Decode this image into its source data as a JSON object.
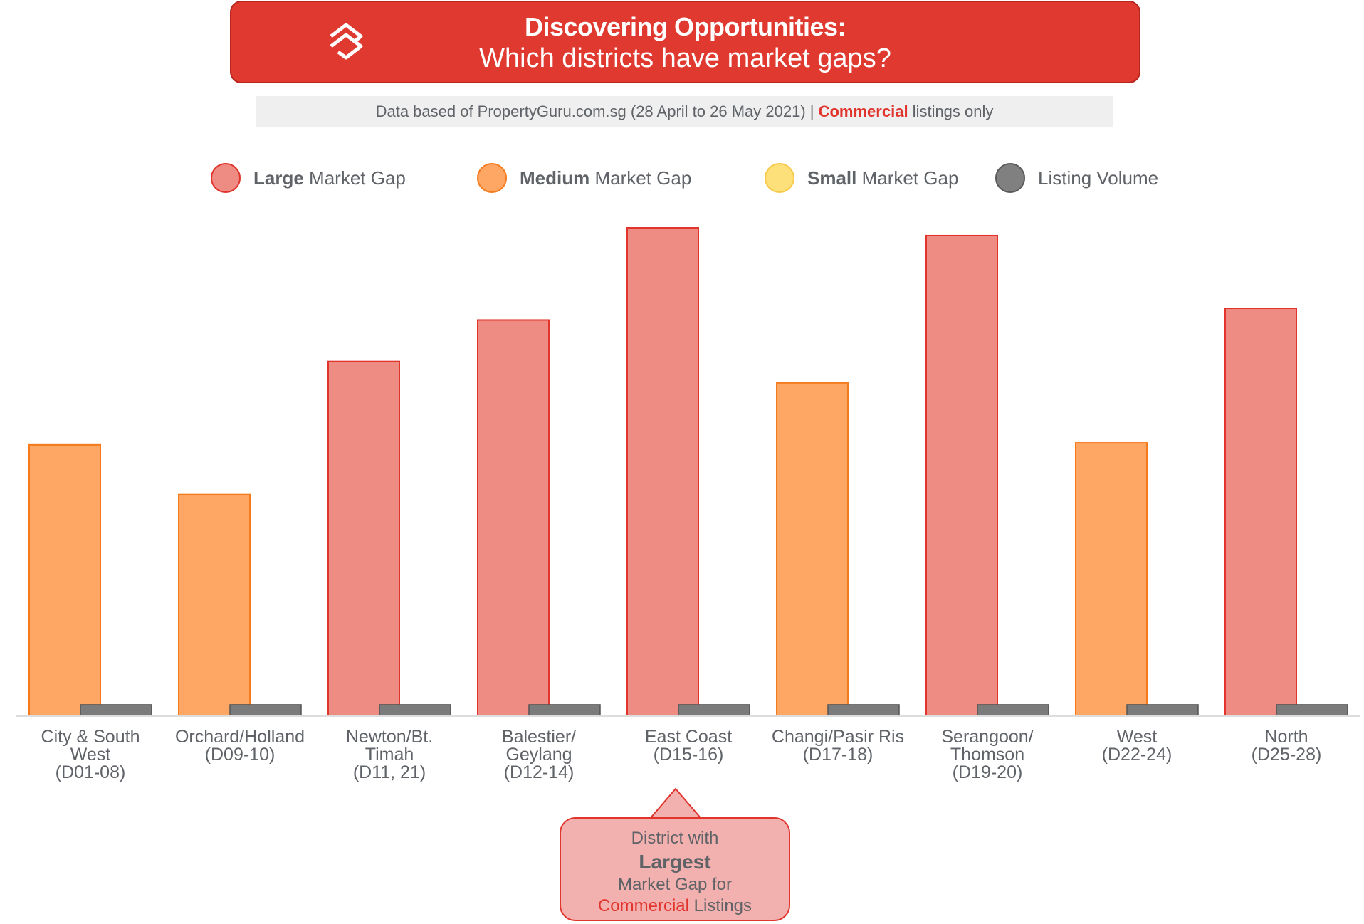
{
  "header": {
    "title_line1": "Discovering Opportunities:",
    "title_line2": "Which districts have market gaps?",
    "logo_icon": "propertyguru-logo-icon"
  },
  "source_note": {
    "prefix": "Data based of PropertyGuru.com.sg (28 April to 26 May 2021) | ",
    "highlight": "Commercial",
    "suffix": " listings only"
  },
  "legend": [
    {
      "bold": "Large",
      "rest": " Market Gap",
      "color": "#ee8b83",
      "border": "#e0342c"
    },
    {
      "bold": "Medium",
      "rest": " Market Gap",
      "color": "#fea664",
      "border": "#f57a1c"
    },
    {
      "bold": "Small",
      "rest": " Market Gap",
      "color": "#fde07a",
      "border": "#f7c948"
    },
    {
      "bold": "",
      "rest": "Listing Volume",
      "color": "#808080",
      "border": "#5a5a5a"
    }
  ],
  "colors": {
    "large": "#ee8b83",
    "large_border": "#e0342c",
    "medium": "#fea664",
    "medium_border": "#f57a1c",
    "volume": "#7b7b7b",
    "volume_border": "#555555",
    "accent": "#e03a30"
  },
  "chart_data": {
    "type": "bar",
    "categories": [
      [
        "City & South",
        "West",
        "(D01-08)"
      ],
      [
        "Orchard/Holland",
        "(D09-10)"
      ],
      [
        "Newton/Bt.",
        "Timah",
        "(D11, 21)"
      ],
      [
        "Balestier/",
        "Geylang",
        "(D12-14)"
      ],
      [
        "East Coast",
        "(D15-16)"
      ],
      [
        "Changi/Pasir Ris",
        "(D17-18)"
      ],
      [
        "Serangoon/",
        "Thomson",
        "(D19-20)"
      ],
      [
        "West",
        "(D22-24)"
      ],
      [
        "North",
        "(D25-28)"
      ]
    ],
    "series": [
      {
        "name": "Market Gap",
        "values": [
          55.5,
          45.3,
          72.6,
          81.1,
          100,
          68.2,
          98.4,
          55.9,
          83.5
        ],
        "gap_level": [
          "medium",
          "medium",
          "large",
          "large",
          "large",
          "medium",
          "large",
          "medium",
          "large"
        ]
      },
      {
        "name": "Listing Volume",
        "values": [
          2.2,
          2.2,
          2.2,
          2.2,
          2.2,
          2.2,
          2.2,
          2.2,
          2.2
        ]
      }
    ],
    "ylim": [
      0,
      100
    ],
    "grid": false,
    "legend_position": "top"
  },
  "callout": {
    "line1": "District with",
    "line2": "Largest",
    "line3": "Market Gap for",
    "line4_highlight": "Commercial",
    "line4_rest": " Listings"
  }
}
